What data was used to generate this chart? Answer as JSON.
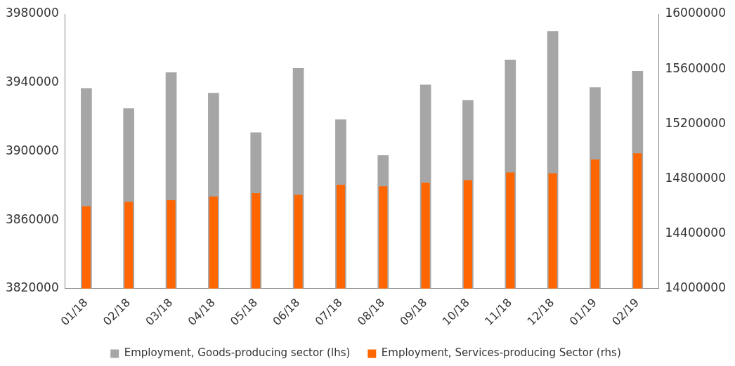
{
  "chart_data": {
    "type": "bar",
    "categories": [
      "01/18",
      "02/18",
      "03/18",
      "04/18",
      "05/18",
      "06/18",
      "07/18",
      "08/18",
      "09/18",
      "10/18",
      "11/18",
      "12/18",
      "01/19",
      "02/19"
    ],
    "series": [
      {
        "name": "Employment, Goods-producing sector (lhs)",
        "color": "#a6a6a6",
        "values": [
          3936800,
          3925000,
          3946000,
          3934000,
          3911000,
          3948500,
          3918600,
          3897700,
          3938900,
          3929800,
          3953400,
          3970100,
          3937300,
          3946800
        ]
      },
      {
        "name": "Employment, Services-producing Sector (rhs)",
        "color": "#ff6600",
        "axis": "y2",
        "values": [
          14600000,
          14633000,
          14644000,
          14671000,
          14695000,
          14683000,
          14756000,
          14745000,
          14772000,
          14790000,
          14846000,
          14839000,
          14941000,
          14986000
        ]
      }
    ],
    "ylim": [
      3820000,
      3980000
    ],
    "yticks": [
      3820000,
      3860000,
      3900000,
      3940000,
      3980000
    ],
    "y2lim": [
      14000000,
      16000000
    ],
    "y2ticks": [
      14000000,
      14400000,
      14800000,
      15200000,
      15600000,
      16000000
    ],
    "grid": false,
    "legend": "bottom"
  }
}
